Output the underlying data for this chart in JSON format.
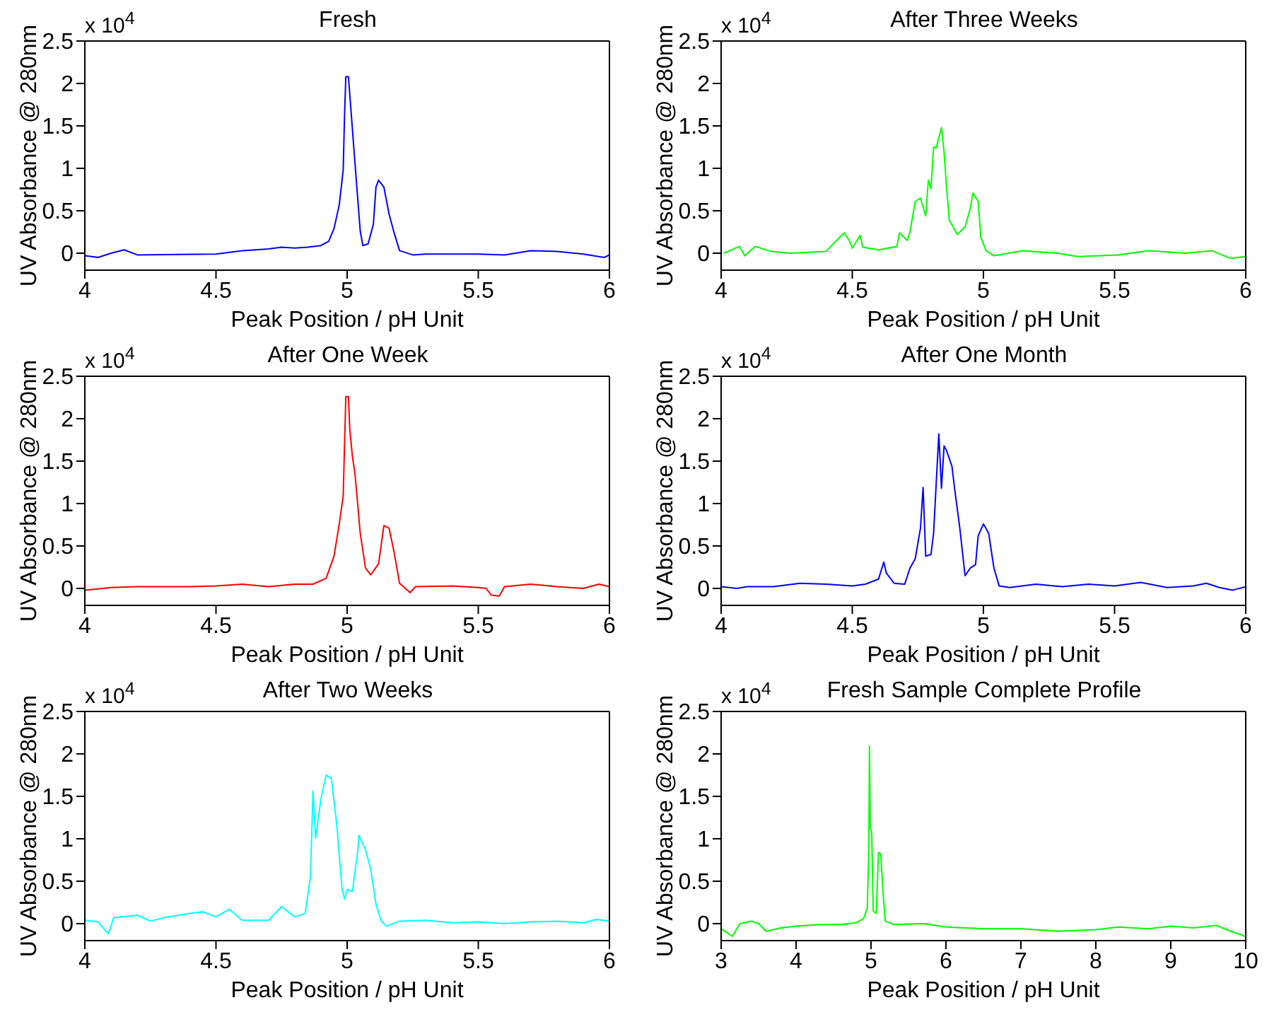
{
  "chart_data": [
    {
      "type": "line",
      "title": "Fresh",
      "xlabel": "Peak Position / pH Unit",
      "ylabel": "UV Absorbance @ 280nm",
      "annotations": [
        "x 10$^{4}$"
      ],
      "xlim": [
        4,
        6
      ],
      "ylim": [
        -0.2,
        2.5
      ],
      "xticks": [
        4,
        4.5,
        5,
        5.5,
        6
      ],
      "yticks": [
        0,
        0.5,
        1,
        1.5,
        2,
        2.5
      ],
      "x": [
        4.0,
        4.05,
        4.1,
        4.15,
        4.2,
        4.5,
        4.6,
        4.7,
        4.75,
        4.8,
        4.85,
        4.9,
        4.93,
        4.95,
        4.97,
        4.985,
        4.99,
        4.995,
        5.005,
        5.015,
        5.03,
        5.05,
        5.06,
        5.08,
        5.1,
        5.11,
        5.12,
        5.14,
        5.16,
        5.18,
        5.2,
        5.25,
        5.3,
        5.5,
        5.6,
        5.7,
        5.8,
        5.9,
        5.98,
        6.0
      ],
      "series": [
        {
          "color": "#0000ff",
          "values": [
            -0.03,
            -0.05,
            0,
            0.04,
            -0.02,
            -0.01,
            0.03,
            0.05,
            0.07,
            0.06,
            0.07,
            0.09,
            0.14,
            0.29,
            0.57,
            0.98,
            1.61,
            2.08,
            2.08,
            1.67,
            1.06,
            0.26,
            0.09,
            0.11,
            0.34,
            0.78,
            0.86,
            0.78,
            0.46,
            0.23,
            0.03,
            -0.02,
            -0.01,
            -0.01,
            -0.02,
            0.03,
            0.02,
            -0.01,
            -0.05,
            -0.02
          ]
        }
      ]
    },
    {
      "type": "line",
      "title": "After Three Weeks",
      "xlabel": "Peak Position / pH Unit",
      "ylabel": "UV Absorbance @ 280nm",
      "annotations": [
        "x 10$^{4}$"
      ],
      "xlim": [
        4,
        6
      ],
      "ylim": [
        -0.2,
        2.5
      ],
      "xticks": [
        4,
        4.5,
        5,
        5.5,
        6
      ],
      "yticks": [
        0,
        0.5,
        1,
        1.5,
        2,
        2.5
      ],
      "x": [
        4.01,
        4.07,
        4.09,
        4.13,
        4.19,
        4.26,
        4.4,
        4.44,
        4.47,
        4.49,
        4.5,
        4.53,
        4.54,
        4.6,
        4.67,
        4.68,
        4.71,
        4.72,
        4.74,
        4.76,
        4.78,
        4.79,
        4.8,
        4.81,
        4.82,
        4.84,
        4.85,
        4.86,
        4.87,
        4.9,
        4.93,
        4.95,
        4.96,
        4.98,
        4.99,
        5.01,
        5.04,
        5.15,
        5.28,
        5.36,
        5.51,
        5.63,
        5.77,
        5.87,
        5.94,
        6.0
      ],
      "series": [
        {
          "color": "#00ff00",
          "values": [
            0,
            0.08,
            -0.03,
            0.08,
            0.02,
            0,
            0.02,
            0.15,
            0.24,
            0.14,
            0.06,
            0.21,
            0.07,
            0.04,
            0.08,
            0.24,
            0.15,
            0.25,
            0.61,
            0.65,
            0.44,
            0.86,
            0.76,
            1.25,
            1.24,
            1.48,
            1.19,
            0.75,
            0.39,
            0.22,
            0.31,
            0.53,
            0.71,
            0.61,
            0.19,
            0.03,
            -0.03,
            0.03,
            0,
            -0.04,
            -0.02,
            0.03,
            0,
            0.03,
            -0.06,
            -0.04
          ]
        }
      ]
    },
    {
      "type": "line",
      "title": "After One Week",
      "xlabel": "Peak Position / pH Unit",
      "ylabel": "UV Absorbance @ 280nm",
      "annotations": [
        "x 10$^{4}$"
      ],
      "xlim": [
        4,
        6
      ],
      "ylim": [
        -0.2,
        2.5
      ],
      "xticks": [
        4,
        4.5,
        5,
        5.5,
        6
      ],
      "yticks": [
        0,
        0.5,
        1,
        1.5,
        2,
        2.5
      ],
      "x": [
        4.0,
        4.1,
        4.2,
        4.4,
        4.5,
        4.6,
        4.7,
        4.8,
        4.87,
        4.92,
        4.95,
        4.97,
        4.985,
        4.995,
        5.005,
        5.01,
        5.02,
        5.03,
        5.05,
        5.07,
        5.09,
        5.12,
        5.14,
        5.16,
        5.18,
        5.2,
        5.24,
        5.26,
        5.4,
        5.5,
        5.53,
        5.55,
        5.58,
        5.6,
        5.7,
        5.8,
        5.9,
        5.96,
        6.0
      ],
      "series": [
        {
          "color": "#ff0000",
          "values": [
            -0.02,
            0.01,
            0.02,
            0.02,
            0.03,
            0.05,
            0.02,
            0.05,
            0.05,
            0.12,
            0.38,
            0.76,
            1.09,
            2.26,
            2.26,
            1.88,
            1.56,
            1.35,
            0.65,
            0.24,
            0.16,
            0.29,
            0.74,
            0.71,
            0.41,
            0.06,
            -0.05,
            0.02,
            0.03,
            0.01,
            0,
            -0.08,
            -0.09,
            0.02,
            0.05,
            0.02,
            0,
            0.05,
            0.02
          ]
        }
      ]
    },
    {
      "type": "line",
      "title": "After One Month",
      "xlabel": "Peak Position / pH Unit",
      "ylabel": "UV Absorbance @ 280nm",
      "annotations": [
        "x 10$^{4}$"
      ],
      "xlim": [
        4,
        6
      ],
      "ylim": [
        -0.2,
        2.5
      ],
      "xticks": [
        4,
        4.5,
        5,
        5.5,
        6
      ],
      "yticks": [
        0,
        0.5,
        1,
        1.5,
        2,
        2.5
      ],
      "x": [
        4.0,
        4.06,
        4.1,
        4.2,
        4.3,
        4.4,
        4.5,
        4.55,
        4.6,
        4.62,
        4.63,
        4.66,
        4.7,
        4.72,
        4.74,
        4.76,
        4.77,
        4.78,
        4.8,
        4.81,
        4.82,
        4.83,
        4.84,
        4.85,
        4.86,
        4.88,
        4.89,
        4.91,
        4.93,
        4.95,
        4.97,
        4.98,
        5.0,
        5.02,
        5.04,
        5.06,
        5.1,
        5.2,
        5.3,
        5.4,
        5.5,
        5.6,
        5.7,
        5.8,
        5.85,
        5.9,
        5.95,
        6.0
      ],
      "series": [
        {
          "color": "#0000ff",
          "values": [
            0.02,
            0,
            0.02,
            0.02,
            0.06,
            0.05,
            0.03,
            0.05,
            0.11,
            0.31,
            0.18,
            0.06,
            0.05,
            0.24,
            0.35,
            0.71,
            1.19,
            0.38,
            0.4,
            0.65,
            1.24,
            1.82,
            1.18,
            1.68,
            1.62,
            1.44,
            1.18,
            0.71,
            0.15,
            0.24,
            0.28,
            0.62,
            0.76,
            0.65,
            0.24,
            0.03,
            0.01,
            0.05,
            0.02,
            0.05,
            0.03,
            0.07,
            0.01,
            0.03,
            0.06,
            0.01,
            -0.02,
            0.02
          ]
        }
      ]
    },
    {
      "type": "line",
      "title": "After Two Weeks",
      "xlabel": "Peak Position / pH Unit",
      "ylabel": "UV Absorbance @ 280nm",
      "annotations": [
        "x 10$^{4}$"
      ],
      "xlim": [
        4,
        6
      ],
      "ylim": [
        -0.2,
        2.5
      ],
      "xticks": [
        4,
        4.5,
        5,
        5.5,
        6
      ],
      "yticks": [
        0,
        0.5,
        1,
        1.5,
        2,
        2.5
      ],
      "x": [
        4.0,
        4.05,
        4.09,
        4.11,
        4.2,
        4.25,
        4.3,
        4.4,
        4.45,
        4.5,
        4.55,
        4.6,
        4.7,
        4.75,
        4.8,
        4.84,
        4.86,
        4.87,
        4.88,
        4.9,
        4.92,
        4.94,
        4.96,
        4.98,
        4.99,
        5.0,
        5.02,
        5.04,
        5.045,
        5.07,
        5.09,
        5.11,
        5.13,
        5.15,
        5.2,
        5.3,
        5.4,
        5.5,
        5.6,
        5.7,
        5.8,
        5.9,
        5.95,
        6.0
      ],
      "series": [
        {
          "color": "#00ffff",
          "values": [
            0.04,
            0.02,
            -0.12,
            0.07,
            0.1,
            0.03,
            0.07,
            0.12,
            0.14,
            0.08,
            0.17,
            0.04,
            0.04,
            0.2,
            0.08,
            0.12,
            0.55,
            1.56,
            1.01,
            1.47,
            1.75,
            1.71,
            1.18,
            0.43,
            0.29,
            0.4,
            0.38,
            0.84,
            1.04,
            0.87,
            0.64,
            0.23,
            0.03,
            -0.03,
            0.03,
            0.04,
            0.01,
            0.02,
            0,
            0.02,
            0.03,
            0.01,
            0.05,
            0.03
          ]
        }
      ]
    },
    {
      "type": "line",
      "title": "Fresh Sample Complete Profile",
      "xlabel": "Peak Position / pH Unit",
      "ylabel": "UV Absorbance @ 280nm",
      "annotations": [
        "x 10$^{4}$"
      ],
      "xlim": [
        3,
        10
      ],
      "ylim": [
        -0.2,
        2.5
      ],
      "xticks": [
        3,
        4,
        5,
        6,
        7,
        8,
        9,
        10
      ],
      "yticks": [
        0,
        0.5,
        1,
        1.5,
        2,
        2.5
      ],
      "x": [
        3.0,
        3.15,
        3.25,
        3.4,
        3.5,
        3.6,
        3.8,
        4.0,
        4.3,
        4.6,
        4.8,
        4.9,
        4.95,
        4.97,
        4.98,
        4.99,
        5.01,
        5.03,
        5.07,
        5.1,
        5.13,
        5.16,
        5.19,
        5.3,
        5.7,
        6.0,
        6.5,
        7.0,
        7.5,
        8.0,
        8.3,
        8.7,
        9.0,
        9.3,
        9.6,
        9.8,
        10.0
      ],
      "series": [
        {
          "color": "#00ff00",
          "values": [
            -0.06,
            -0.15,
            0,
            0.03,
            0,
            -0.09,
            -0.05,
            -0.03,
            -0.01,
            -0.01,
            0.01,
            0.06,
            0.18,
            0.85,
            2.09,
            1.15,
            1.06,
            0.15,
            0.12,
            0.84,
            0.82,
            0.38,
            0.03,
            -0.01,
            0,
            -0.04,
            -0.06,
            -0.06,
            -0.09,
            -0.07,
            -0.04,
            -0.06,
            -0.03,
            -0.05,
            -0.02,
            -0.09,
            -0.15
          ]
        }
      ]
    }
  ]
}
